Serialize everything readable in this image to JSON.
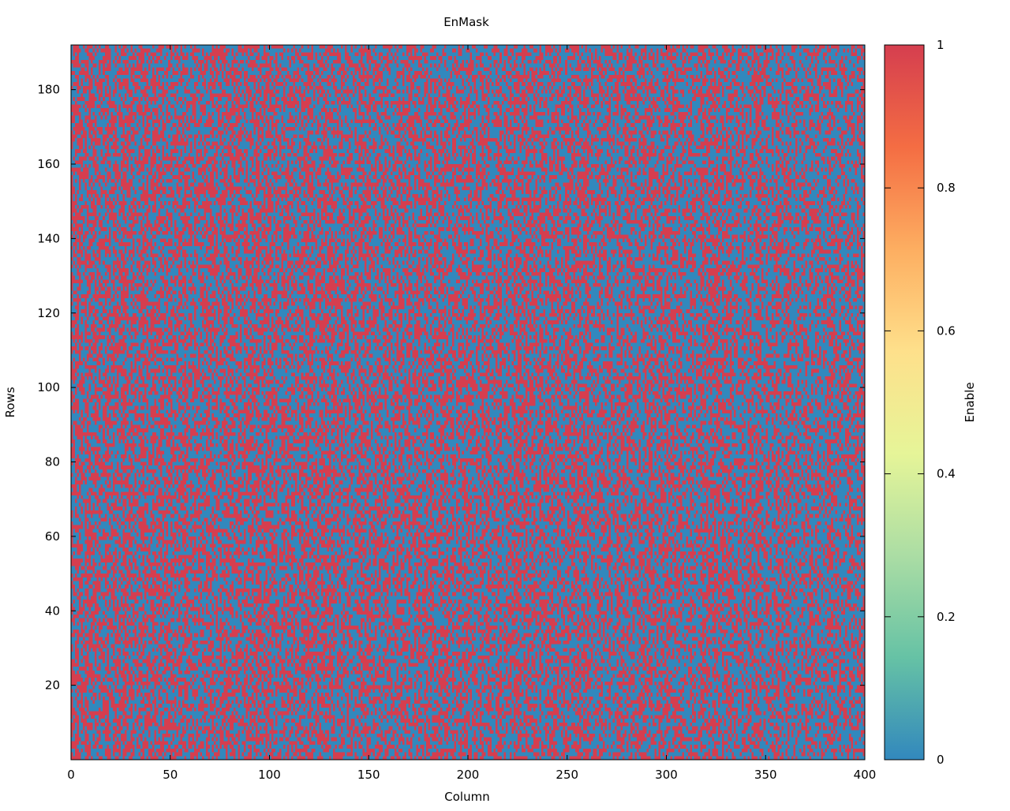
{
  "chart_data": {
    "type": "heatmap",
    "title": "EnMask",
    "xlabel": "Column",
    "ylabel": "Rows",
    "colorbar_label": "Enable",
    "xlim": [
      0,
      400
    ],
    "ylim": [
      0,
      192
    ],
    "x_ticks": [
      0,
      50,
      100,
      150,
      200,
      250,
      300,
      350,
      400
    ],
    "y_ticks": [
      20,
      40,
      60,
      80,
      100,
      120,
      140,
      160,
      180
    ],
    "colorbar_range": [
      0,
      1
    ],
    "colorbar_ticks": [
      "0",
      "0.2",
      "0.4",
      "0.6",
      "0.8",
      "1"
    ],
    "grid": false,
    "value_colors": {
      "0": "#3288bd",
      "1": "#d53e4f"
    },
    "colormap_stops": [
      "#3288bd",
      "#66c2a5",
      "#abdda4",
      "#e6f598",
      "#fee08b",
      "#fdae61",
      "#f46d43",
      "#d53e4f"
    ],
    "enabled_fraction": 0.5
  }
}
